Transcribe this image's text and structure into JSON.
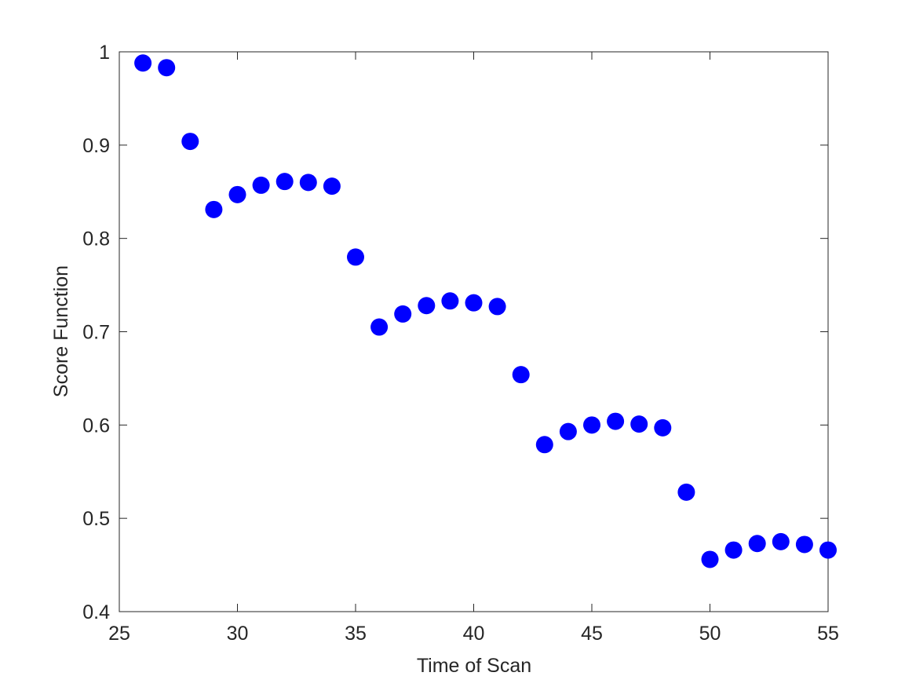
{
  "chart_data": {
    "type": "scatter",
    "xlabel": "Time of Scan",
    "ylabel": "Score Function",
    "color": "#0000ff",
    "x": [
      26,
      27,
      28,
      29,
      30,
      31,
      32,
      33,
      34,
      35,
      36,
      37,
      38,
      39,
      40,
      41,
      42,
      43,
      44,
      45,
      46,
      47,
      48,
      49,
      50,
      51,
      52,
      53,
      54,
      55
    ],
    "values": [
      0.988,
      0.983,
      0.904,
      0.831,
      0.847,
      0.857,
      0.861,
      0.86,
      0.856,
      0.78,
      0.705,
      0.719,
      0.728,
      0.733,
      0.731,
      0.727,
      0.654,
      0.579,
      0.593,
      0.6,
      0.604,
      0.601,
      0.597,
      0.528,
      0.456,
      0.466,
      0.473,
      0.475,
      0.472,
      0.466
    ],
    "xlim": [
      25,
      55
    ],
    "xticks": [
      25,
      30,
      35,
      40,
      45,
      50,
      55
    ],
    "ylim": [
      0.4,
      1
    ],
    "yticks": [
      0.4,
      0.5,
      0.6,
      0.7,
      0.8,
      0.9,
      1
    ]
  }
}
